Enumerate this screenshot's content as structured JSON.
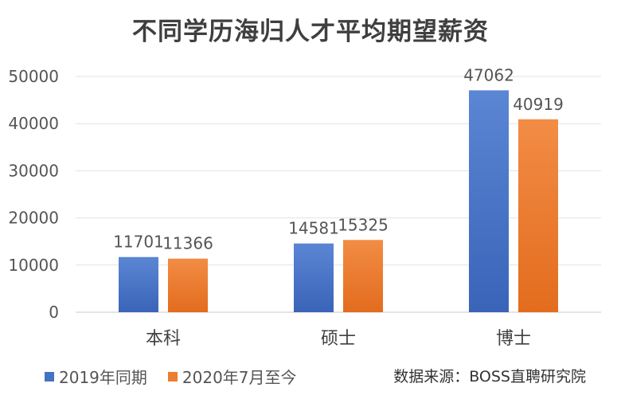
{
  "chart_data": {
    "type": "bar",
    "title": "不同学历海归人才平均期望薪资",
    "categories": [
      "本科",
      "硕士",
      "博士"
    ],
    "series": [
      {
        "name": "2019年同期",
        "values": [
          11701,
          14581,
          47062
        ],
        "color": "#4472C4"
      },
      {
        "name": "2020年7月至今",
        "values": [
          11366,
          15325,
          40919
        ],
        "color": "#ED7D31"
      }
    ],
    "ylim": [
      0,
      50000
    ],
    "yticks": [
      0,
      10000,
      20000,
      30000,
      40000,
      50000
    ],
    "grid": true,
    "legend_position": "bottom-left",
    "source_note": "数据来源：BOSS直聘研究院"
  }
}
